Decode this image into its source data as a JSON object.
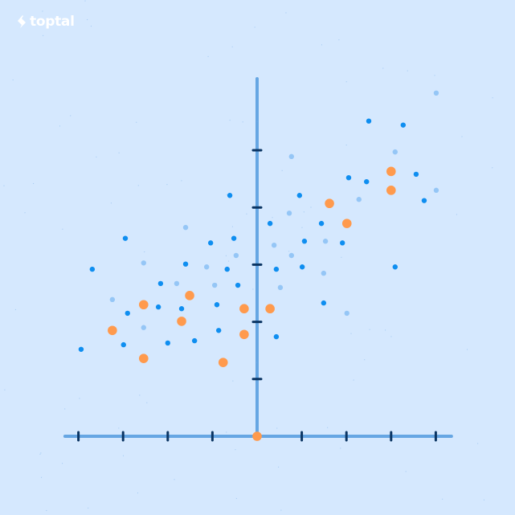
{
  "brand": {
    "name": "toptal",
    "logo_icon": "toptal-diamond-icon",
    "color": "#ffffff"
  },
  "colors": {
    "background": "#d5e8fe",
    "axis": "#66a6e3",
    "tick": "#0b3563",
    "dot_dark": "#0f8ef0",
    "dot_light": "#95c6f6",
    "dot_orange": "#ff9a4d"
  },
  "chart_data": {
    "type": "scatter",
    "title": "",
    "xlabel": "",
    "ylabel": "",
    "xlim": [
      -4.3,
      4.35
    ],
    "ylim": [
      0,
      6.25
    ],
    "x_ticks": [
      -4,
      -3,
      -2,
      -1,
      0,
      1,
      2,
      3,
      4
    ],
    "y_ticks": [
      1,
      2,
      3,
      4,
      5
    ],
    "tick_labels_shown": false,
    "grid": false,
    "legend": "none",
    "series": [
      {
        "style": "dark-blue-small",
        "points": [
          [
            2.5,
            5.51
          ],
          [
            3.27,
            5.44
          ],
          [
            2.05,
            4.52
          ],
          [
            2.45,
            4.45
          ],
          [
            3.56,
            4.58
          ],
          [
            3.74,
            4.12
          ],
          [
            -0.61,
            4.21
          ],
          [
            0.95,
            4.21
          ],
          [
            0.29,
            3.72
          ],
          [
            1.44,
            3.72
          ],
          [
            -2.95,
            3.46
          ],
          [
            -1.04,
            3.38
          ],
          [
            -0.52,
            3.46
          ],
          [
            1.06,
            3.41
          ],
          [
            1.91,
            3.38
          ],
          [
            -3.69,
            2.92
          ],
          [
            -1.6,
            3.01
          ],
          [
            -0.67,
            2.92
          ],
          [
            0.43,
            2.92
          ],
          [
            1.01,
            2.96
          ],
          [
            3.09,
            2.96
          ],
          [
            -2.16,
            2.67
          ],
          [
            -0.43,
            2.64
          ],
          [
            -2.21,
            2.26
          ],
          [
            -1.69,
            2.23
          ],
          [
            -0.9,
            2.3
          ],
          [
            -2.9,
            2.15
          ],
          [
            1.49,
            2.33
          ],
          [
            -0.86,
            1.85
          ],
          [
            -2.99,
            1.6
          ],
          [
            -2.0,
            1.63
          ],
          [
            -1.4,
            1.67
          ],
          [
            0.43,
            1.74
          ],
          [
            -3.94,
            1.52
          ]
        ]
      },
      {
        "style": "light-blue-small",
        "points": [
          [
            4.01,
            6.0
          ],
          [
            0.77,
            4.89
          ],
          [
            3.09,
            4.97
          ],
          [
            4.01,
            4.3
          ],
          [
            2.28,
            4.14
          ],
          [
            0.72,
            3.9
          ],
          [
            -1.6,
            3.65
          ],
          [
            0.38,
            3.34
          ],
          [
            1.53,
            3.41
          ],
          [
            -0.47,
            3.16
          ],
          [
            0.77,
            3.16
          ],
          [
            -2.54,
            3.03
          ],
          [
            -1.13,
            2.96
          ],
          [
            1.49,
            2.85
          ],
          [
            -1.8,
            2.67
          ],
          [
            -0.95,
            2.64
          ],
          [
            0.52,
            2.6
          ],
          [
            -3.24,
            2.39
          ],
          [
            2.01,
            2.15
          ],
          [
            -2.54,
            1.9
          ]
        ]
      },
      {
        "style": "orange-large",
        "points": [
          [
            3.0,
            4.63
          ],
          [
            3.0,
            4.3
          ],
          [
            1.62,
            4.07
          ],
          [
            2.01,
            3.72
          ],
          [
            -1.51,
            2.46
          ],
          [
            -2.54,
            2.3
          ],
          [
            -0.29,
            2.23
          ],
          [
            0.29,
            2.23
          ],
          [
            -1.69,
            2.01
          ],
          [
            -3.24,
            1.85
          ],
          [
            -0.29,
            1.78
          ],
          [
            -2.54,
            1.36
          ],
          [
            -0.76,
            1.29
          ],
          [
            0,
            0
          ]
        ]
      }
    ]
  }
}
